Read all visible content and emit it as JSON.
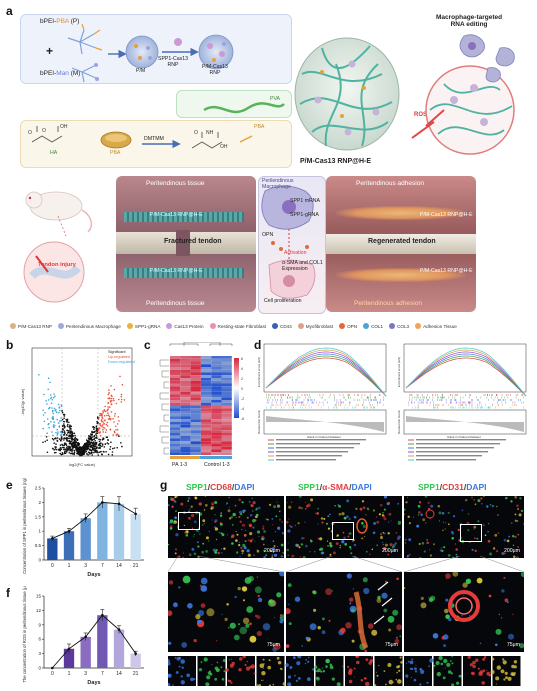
{
  "panel_labels": {
    "a": "a",
    "b": "b",
    "c": "c",
    "d": "d",
    "e": "e",
    "f": "f",
    "g": "g"
  },
  "panel_a": {
    "polymer_p": {
      "prefix": "bPEI-",
      "accent": "PBA",
      "suffix": " (P)"
    },
    "polymer_m": {
      "prefix": "bPEI-",
      "accent": "Man",
      "suffix": " (M)"
    },
    "plus": "+",
    "pm_label": "P/M",
    "rnp_arrow_label": "SPP1-Cas13\nRNP",
    "pm_rnp_label": "P/M-Cas13\nRNP",
    "ha_label": "HA",
    "pba_label": "PBA",
    "dmtmm_label": "DMTMM",
    "pva_label": "PVA",
    "pba_label2": "PBA",
    "gel_label": "P/M-Cas13 RNP@H-E",
    "ros_label": "ROS",
    "targeted_title": "Macrophage-targeted\nRNA editing",
    "mouse_label": "Tendon injury",
    "left_scene": {
      "top": "Peritendinous tissue",
      "center": "Fractured tendon",
      "bottom": "Peritendinous tissue",
      "tag1": "P/M-Cas13 RNP@H-E",
      "tag2": "P/M-Cas13 RNP@H-E"
    },
    "mid_scene": {
      "title": "Perilendinous\nMacrophage",
      "labels": [
        "SPP1 mRNA",
        "SPP1-gRNA",
        "OPN",
        "Activation",
        "α-SMA and COL1\nExpression",
        "Cell proliferation"
      ]
    },
    "right_scene": {
      "top": "Peritendinous adhesion",
      "center": "Regenerated tendon",
      "bottom": "Peritendinous adhesion",
      "tag1": "P/M-Cas13 RNP@H-E",
      "tag2": "P/M-Cas13 RNP@H-E"
    }
  },
  "legend": [
    {
      "label": "P/M-Cas13 RNP",
      "color": "#d9b28a"
    },
    {
      "label": "Peritendinous Macrophage",
      "color": "#9ea9d4"
    },
    {
      "label": "SPP1-gRNA",
      "color": "#e8b23c"
    },
    {
      "label": "Cas13 Protein",
      "color": "#c99ad6"
    },
    {
      "label": "Resting-state Fibroblast",
      "color": "#e98fb0"
    },
    {
      "label": "CD44",
      "color": "#3a5fb4"
    },
    {
      "label": "Myofibroblast",
      "color": "#d9a38a"
    },
    {
      "label": "OPN",
      "color": "#e06a3c"
    },
    {
      "label": "COL1",
      "color": "#4aa3d8"
    },
    {
      "label": "COL3",
      "color": "#7a78c6"
    },
    {
      "label": "Adhesion Tissue",
      "color": "#f1a35a"
    }
  ],
  "panel_b": {
    "legend": [
      "Significant",
      "Up-regulated",
      "Down-regulated"
    ],
    "colors": {
      "up": "#e8533a",
      "down": "#3da3d9",
      "ns": "#111111"
    },
    "xlabel": "log2(FC value)",
    "ylabel": "-log10(p value)"
  },
  "panel_c": {
    "groups": [
      "PA 1-3",
      "Control 1-3"
    ],
    "scale": [
      "6",
      "4",
      "2",
      "0",
      "-2",
      "-4",
      "-6"
    ]
  },
  "panel_d": {
    "ylabel_top": "Enrichment score (ES)",
    "ylabel_bottom": "Ranked list metric",
    "xlabel": "Rank in Ordered Dataset"
  },
  "chart_data": [
    {
      "type": "bar",
      "panel": "e",
      "categories": [
        "0",
        "1",
        "3",
        "7",
        "14",
        "21"
      ],
      "values": [
        0.75,
        1.0,
        1.45,
        2.0,
        1.95,
        1.6
      ],
      "errors": [
        0.08,
        0.1,
        0.15,
        0.2,
        0.25,
        0.2
      ],
      "colors": [
        "#1f4fa0",
        "#3c6fb8",
        "#5c92cf",
        "#7eb3e2",
        "#a7cdeb",
        "#c9e0f3"
      ],
      "xlabel": "Days",
      "ylabel": "Concentration of SPP1 in peritendinous tissues (ng/g)",
      "ylim": [
        0,
        2.5
      ],
      "yticks": [
        0,
        0.5,
        1.0,
        1.5,
        2.0,
        2.5
      ],
      "trend_line": true
    },
    {
      "type": "bar",
      "panel": "f",
      "categories": [
        "0",
        "1",
        "3",
        "7",
        "14",
        "21"
      ],
      "values": [
        0,
        4,
        6.5,
        11,
        8,
        3
      ],
      "errors": [
        0,
        1.0,
        0.8,
        1.2,
        0.8,
        0.5
      ],
      "colors": [
        "#e3dbf1",
        "#5b3a9c",
        "#8a6cc0",
        "#7059b3",
        "#b3a6dc",
        "#cfc7ea"
      ],
      "xlabel": "Days",
      "ylabel": "The concentration of ROS in peritendinous tissue (μM)",
      "ylim": [
        0,
        15
      ],
      "yticks": [
        0,
        3,
        6,
        9,
        12,
        15
      ],
      "trend_line": true
    }
  ],
  "panel_g": {
    "titles": [
      {
        "a": "SPP1",
        "sep1": "/",
        "b": "CD68",
        "sep2": "/",
        "c": "DAPI",
        "color_a": "#35c452",
        "color_b": "#e53b3b",
        "color_c": "#3b78e0"
      },
      {
        "a": "SPP1",
        "sep1": "/",
        "b": "α-SMA",
        "sep2": "/",
        "c": "DAPI",
        "color_a": "#35c452",
        "color_b": "#e53b3b",
        "color_c": "#3b78e0"
      },
      {
        "a": "SPP1",
        "sep1": "/",
        "b": "CD31",
        "sep2": "/",
        "c": "DAPI",
        "color_a": "#35c452",
        "color_b": "#e53b3b",
        "color_c": "#3b78e0"
      }
    ],
    "scale_top": "200μm",
    "scale_zoom": "75μm"
  }
}
